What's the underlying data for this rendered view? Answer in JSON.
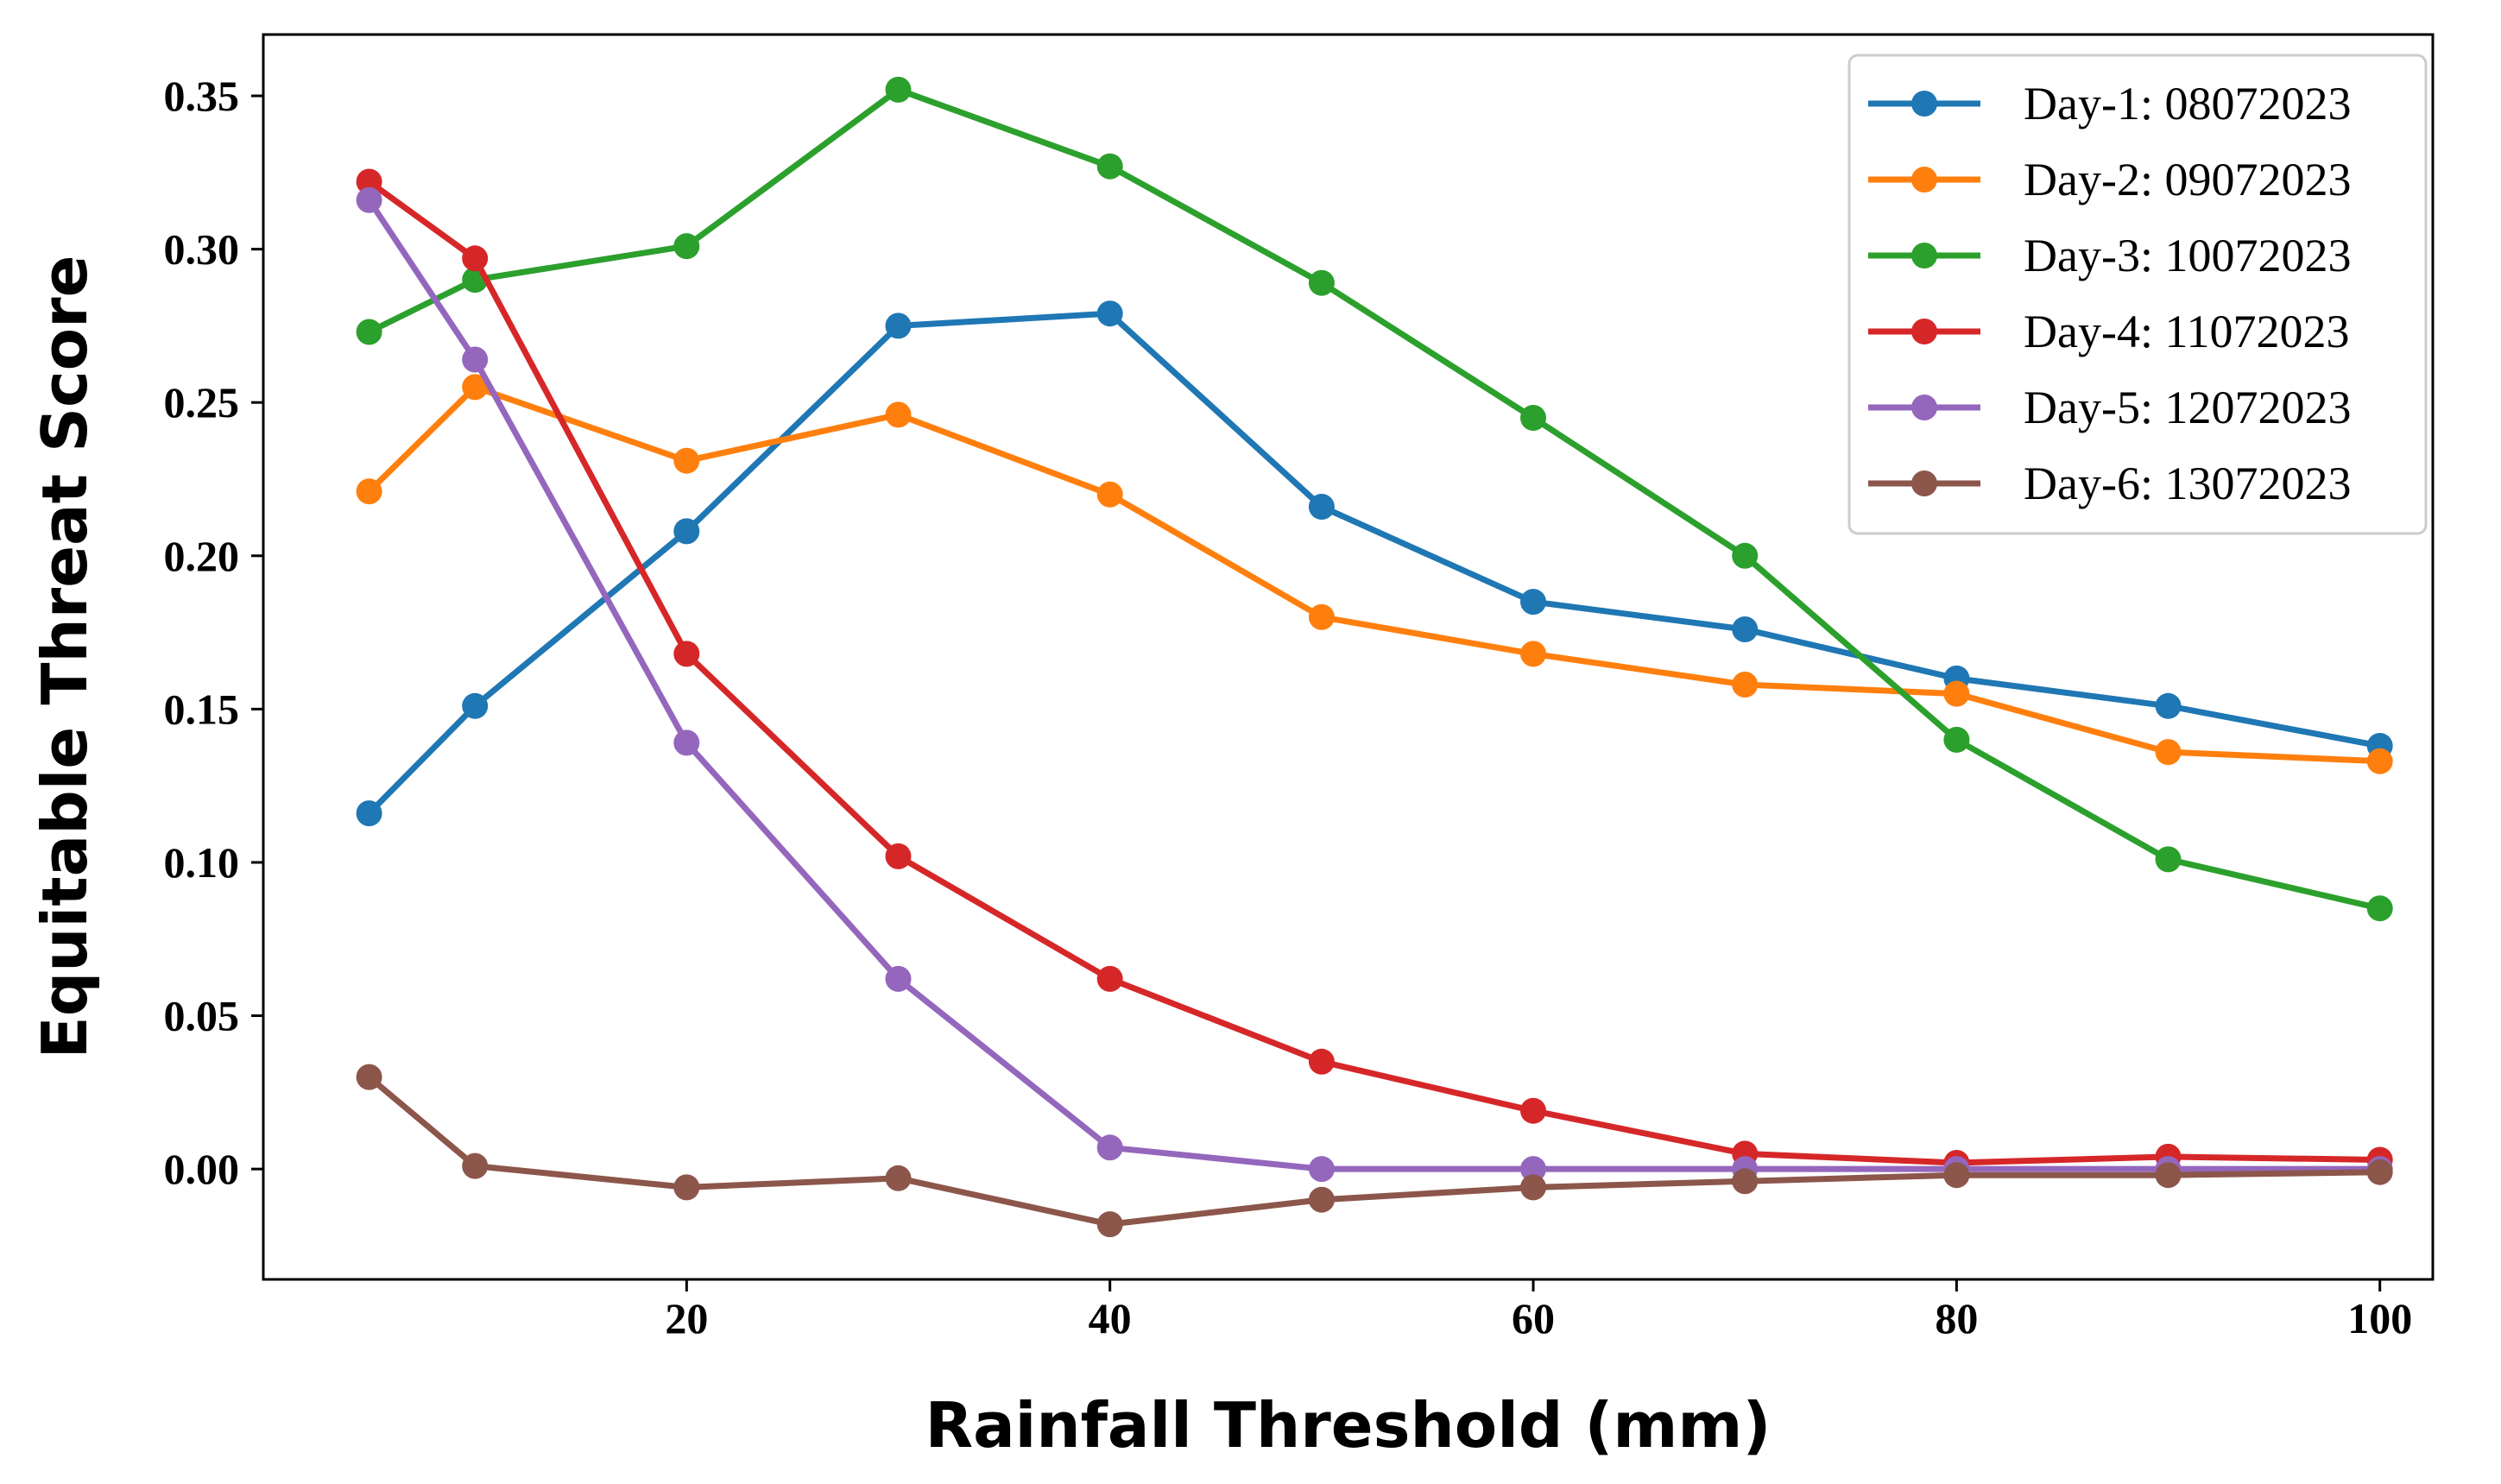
{
  "chart_data": {
    "type": "line",
    "title": "",
    "xlabel": "Rainfall Threshold (mm)",
    "ylabel": "Equitable Threat Score",
    "xlim": [
      0,
      102.5
    ],
    "ylim": [
      -0.036,
      0.37
    ],
    "xticks": [
      20,
      40,
      60,
      80,
      100
    ],
    "xtick_labels": [
      "20",
      "40",
      "60",
      "80",
      "100"
    ],
    "yticks": [
      0.0,
      0.05,
      0.1,
      0.15,
      0.2,
      0.25,
      0.3,
      0.35
    ],
    "ytick_labels": [
      "0.00",
      "0.05",
      "0.10",
      "0.15",
      "0.20",
      "0.25",
      "0.30",
      "0.35"
    ],
    "grid": false,
    "legend_position": "top-right",
    "x": [
      5,
      10,
      20,
      30,
      40,
      50,
      60,
      70,
      80,
      90,
      100
    ],
    "series": [
      {
        "name": "Day-1: 08072023",
        "color": "#1f77b4",
        "values": [
          0.116,
          0.151,
          0.208,
          0.275,
          0.279,
          0.216,
          0.185,
          0.176,
          0.16,
          0.151,
          0.138
        ]
      },
      {
        "name": "Day-2: 09072023",
        "color": "#ff7f0e",
        "values": [
          0.221,
          0.255,
          0.231,
          0.246,
          0.22,
          0.18,
          0.168,
          0.158,
          0.155,
          0.136,
          0.133
        ]
      },
      {
        "name": "Day-3: 10072023",
        "color": "#2ca02c",
        "values": [
          0.273,
          0.29,
          0.301,
          0.352,
          0.327,
          0.289,
          0.245,
          0.2,
          0.14,
          0.101,
          0.085
        ]
      },
      {
        "name": "Day-4: 11072023",
        "color": "#d62728",
        "values": [
          0.322,
          0.297,
          0.168,
          0.102,
          0.062,
          0.035,
          0.019,
          0.005,
          0.002,
          0.004,
          0.003
        ]
      },
      {
        "name": "Day-5: 12072023",
        "color": "#9467bd",
        "values": [
          0.316,
          0.264,
          0.139,
          0.062,
          0.007,
          0.0,
          0.0,
          0.0,
          0.0,
          0.0,
          0.0
        ]
      },
      {
        "name": "Day-6: 13072023",
        "color": "#8c564b",
        "values": [
          0.03,
          0.001,
          -0.006,
          -0.003,
          -0.018,
          -0.01,
          -0.006,
          -0.004,
          -0.002,
          -0.002,
          -0.001
        ]
      }
    ]
  }
}
